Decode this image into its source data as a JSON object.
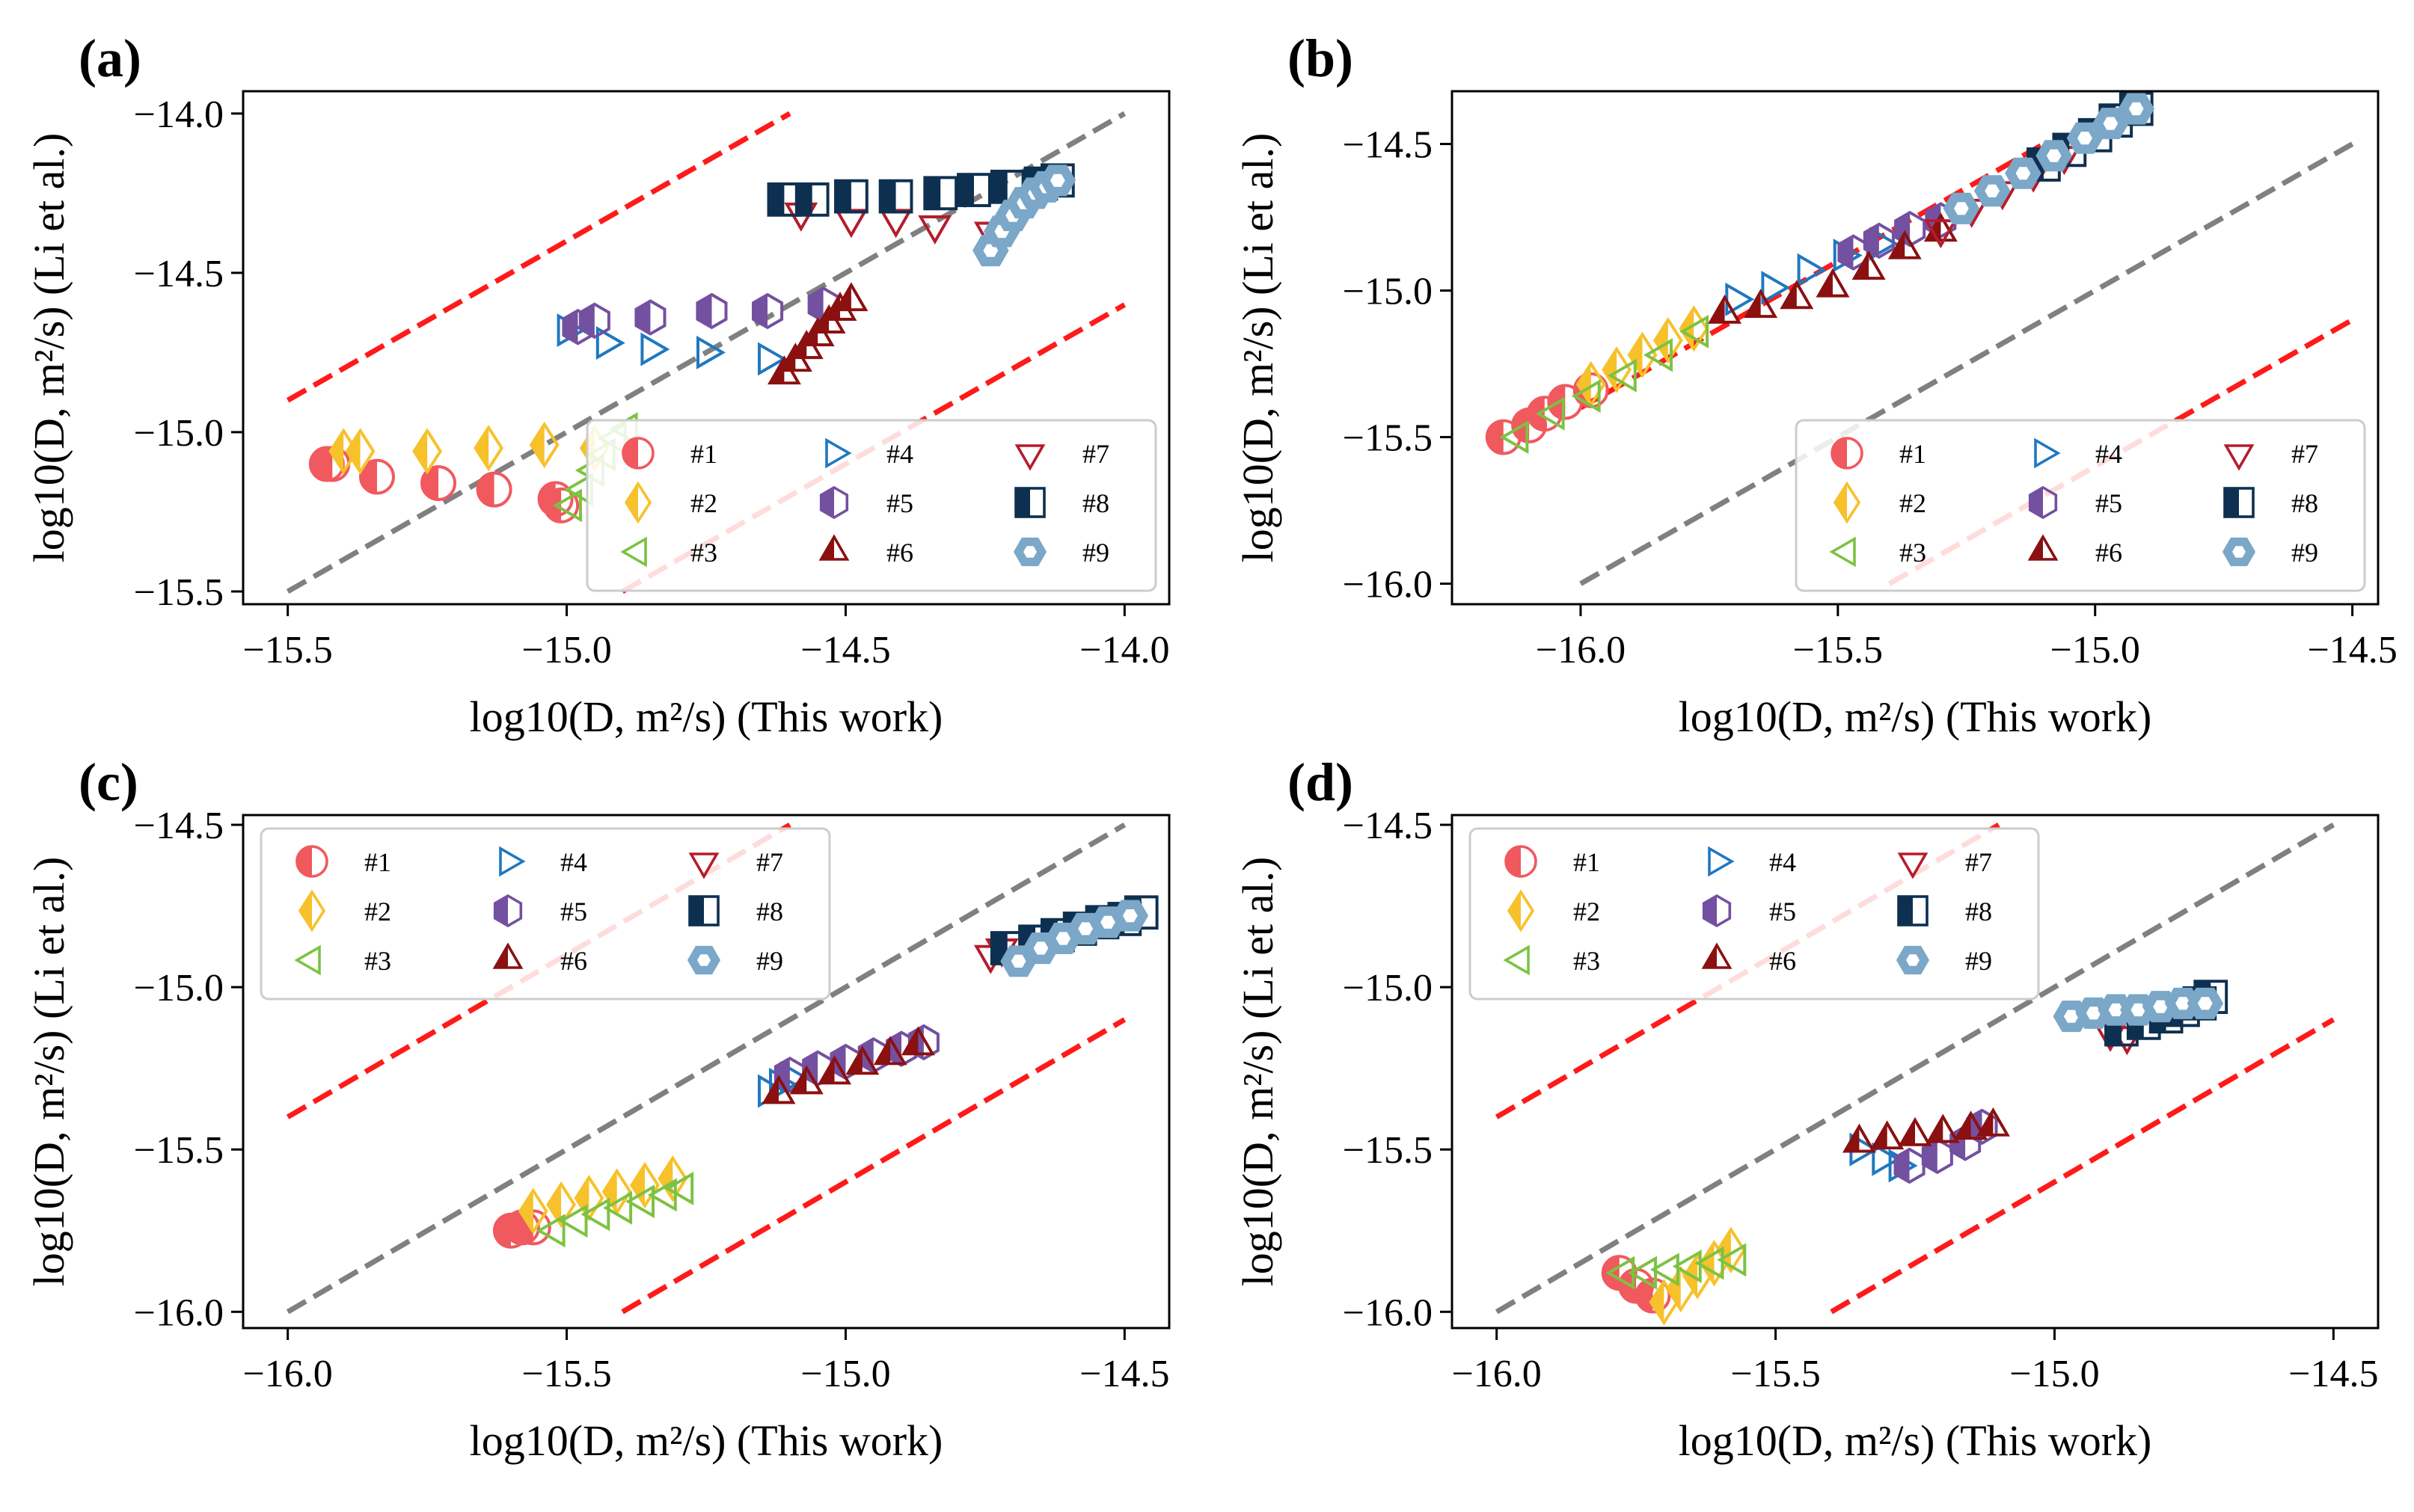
{
  "figure": {
    "x_axis_label": "log10(D, m²/s) (This work)",
    "y_axis_label": "log10(D, m²/s) (Li et al.)"
  },
  "series_styles": [
    {
      "name": "#1",
      "marker": "circle-half",
      "color": "#f0595e"
    },
    {
      "name": "#2",
      "marker": "diamond-half",
      "color": "#f7c12b"
    },
    {
      "name": "#3",
      "marker": "triangle-left",
      "color": "#7dc242"
    },
    {
      "name": "#4",
      "marker": "triangle-right",
      "color": "#1f78c0"
    },
    {
      "name": "#5",
      "marker": "hexagon-half",
      "color": "#7350a0"
    },
    {
      "name": "#6",
      "marker": "triangle-up-half",
      "color": "#8b1010"
    },
    {
      "name": "#7",
      "marker": "triangle-down",
      "color": "#b51c2c"
    },
    {
      "name": "#8",
      "marker": "square-half",
      "color": "#0e3050"
    },
    {
      "name": "#9",
      "marker": "hexagon-side",
      "color": "#7ba7c8"
    }
  ],
  "chart_data": [
    {
      "panel": "(a)",
      "type": "scatter",
      "xlabel": "log10(D, m²/s) (This work)",
      "ylabel": "log10(D, m²/s) (Li et al.)",
      "xlim": [
        -15.58,
        -13.92
      ],
      "ylim": [
        -15.54,
        -13.93
      ],
      "xticks": [
        -15.5,
        -15.0,
        -14.5,
        -14.0
      ],
      "xtick_labels": [
        "−15.5",
        "−15.0",
        "−14.5",
        "−14.0"
      ],
      "yticks": [
        -15.5,
        -15.0,
        -14.5,
        -14.0
      ],
      "ytick_labels": [
        "−15.5",
        "−15.0",
        "−14.5",
        "−14.0"
      ],
      "legend_position": "lower-right",
      "reference_lines": [
        {
          "name": "parity",
          "color": "#808080",
          "x": [
            -15.5,
            -14.0
          ],
          "y": [
            -15.5,
            -14.0
          ]
        },
        {
          "name": "upper-bound",
          "color": "#ff1a1a",
          "x": [
            -15.5,
            -14.6
          ],
          "y": [
            -14.9,
            -14.0
          ]
        },
        {
          "name": "lower-bound",
          "color": "#ff1a1a",
          "x": [
            -14.9,
            -14.0
          ],
          "y": [
            -15.5,
            -14.6
          ]
        }
      ],
      "series": [
        {
          "name": "#1",
          "x": [
            -15.43,
            -15.42,
            -15.34,
            -15.23,
            -15.13,
            -15.02,
            -15.01
          ],
          "y": [
            -15.1,
            -15.1,
            -15.14,
            -15.16,
            -15.18,
            -15.21,
            -15.23
          ]
        },
        {
          "name": "#2",
          "x": [
            -15.4,
            -15.37,
            -15.25,
            -15.14,
            -15.04,
            -14.95
          ],
          "y": [
            -15.06,
            -15.06,
            -15.06,
            -15.05,
            -15.04,
            -15.05
          ]
        },
        {
          "name": "#3",
          "x": [
            -14.99,
            -14.97,
            -14.95,
            -14.93,
            -14.91,
            -14.89
          ],
          "y": [
            -15.23,
            -15.18,
            -15.12,
            -15.07,
            -15.02,
            -14.99
          ]
        },
        {
          "name": "#4",
          "x": [
            -15.0,
            -14.93,
            -14.85,
            -14.75,
            -14.64
          ],
          "y": [
            -14.68,
            -14.72,
            -14.74,
            -14.75,
            -14.77
          ]
        },
        {
          "name": "#5",
          "x": [
            -14.98,
            -14.95,
            -14.85,
            -14.74,
            -14.64,
            -14.54
          ],
          "y": [
            -14.67,
            -14.65,
            -14.64,
            -14.62,
            -14.62,
            -14.6
          ]
        },
        {
          "name": "#6",
          "x": [
            -14.61,
            -14.59,
            -14.57,
            -14.55,
            -14.53,
            -14.51,
            -14.49
          ],
          "y": [
            -14.82,
            -14.78,
            -14.74,
            -14.7,
            -14.66,
            -14.62,
            -14.59
          ]
        },
        {
          "name": "#7",
          "x": [
            -14.58,
            -14.49,
            -14.41,
            -14.34,
            -14.24
          ],
          "y": [
            -14.31,
            -14.33,
            -14.33,
            -14.35,
            -14.37
          ]
        },
        {
          "name": "#8",
          "x": [
            -14.61,
            -14.56,
            -14.49,
            -14.41,
            -14.33,
            -14.27,
            -14.21,
            -14.15,
            -14.12
          ],
          "y": [
            -14.27,
            -14.27,
            -14.26,
            -14.26,
            -14.25,
            -14.24,
            -14.23,
            -14.22,
            -14.21
          ]
        },
        {
          "name": "#9",
          "x": [
            -14.24,
            -14.22,
            -14.2,
            -14.18,
            -14.16,
            -14.14,
            -14.12
          ],
          "y": [
            -14.43,
            -14.37,
            -14.32,
            -14.28,
            -14.25,
            -14.23,
            -14.21
          ]
        }
      ]
    },
    {
      "panel": "(b)",
      "type": "scatter",
      "xlabel": "log10(D, m²/s) (This work)",
      "ylabel": "log10(D, m²/s) (Li et al.)",
      "xlim": [
        -16.25,
        -14.45
      ],
      "ylim": [
        -16.07,
        -14.32
      ],
      "xticks": [
        -16.0,
        -15.5,
        -15.0,
        -14.5
      ],
      "xtick_labels": [
        "−16.0",
        "−15.5",
        "−15.0",
        "−14.5"
      ],
      "yticks": [
        -16.0,
        -15.5,
        -15.0,
        -14.5
      ],
      "ytick_labels": [
        "−16.0",
        "−15.5",
        "−15.0",
        "−14.5"
      ],
      "legend_position": "lower-right",
      "reference_lines": [
        {
          "name": "parity",
          "color": "#808080",
          "x": [
            -16.0,
            -14.5
          ],
          "y": [
            -16.0,
            -14.5
          ]
        },
        {
          "name": "upper-bound",
          "color": "#ff1a1a",
          "x": [
            -16.0,
            -15.1
          ],
          "y": [
            -15.4,
            -14.5
          ]
        },
        {
          "name": "lower-bound",
          "color": "#ff1a1a",
          "x": [
            -15.4,
            -14.5
          ],
          "y": [
            -16.0,
            -15.1
          ]
        }
      ],
      "series": [
        {
          "name": "#1",
          "x": [
            -16.15,
            -16.1,
            -16.07,
            -16.03,
            -15.98
          ],
          "y": [
            -15.5,
            -15.46,
            -15.42,
            -15.38,
            -15.34
          ]
        },
        {
          "name": "#2",
          "x": [
            -15.98,
            -15.93,
            -15.88,
            -15.83,
            -15.78
          ],
          "y": [
            -15.32,
            -15.27,
            -15.22,
            -15.17,
            -15.13
          ]
        },
        {
          "name": "#3",
          "x": [
            -16.12,
            -16.05,
            -15.98,
            -15.91,
            -15.84,
            -15.77
          ],
          "y": [
            -15.5,
            -15.42,
            -15.36,
            -15.29,
            -15.22,
            -15.14
          ]
        },
        {
          "name": "#4",
          "x": [
            -15.7,
            -15.63,
            -15.56,
            -15.49,
            -15.42
          ],
          "y": [
            -15.03,
            -14.99,
            -14.93,
            -14.88,
            -14.84
          ]
        },
        {
          "name": "#5",
          "x": [
            -15.47,
            -15.42,
            -15.36,
            -15.3
          ],
          "y": [
            -14.87,
            -14.83,
            -14.79,
            -14.76
          ]
        },
        {
          "name": "#6",
          "x": [
            -15.72,
            -15.65,
            -15.58,
            -15.51,
            -15.44,
            -15.37,
            -15.3
          ],
          "y": [
            -15.08,
            -15.06,
            -15.03,
            -14.99,
            -14.93,
            -14.86,
            -14.8
          ]
        },
        {
          "name": "#7",
          "x": [
            -15.3,
            -15.24,
            -15.18,
            -15.12,
            -15.06
          ],
          "y": [
            -14.79,
            -14.72,
            -14.66,
            -14.6,
            -14.54
          ]
        },
        {
          "name": "#8",
          "x": [
            -15.1,
            -15.05,
            -15.0,
            -14.96,
            -14.92
          ],
          "y": [
            -14.57,
            -14.52,
            -14.47,
            -14.42,
            -14.38
          ]
        },
        {
          "name": "#9",
          "x": [
            -15.26,
            -15.2,
            -15.14,
            -15.08,
            -15.02,
            -14.97,
            -14.92
          ],
          "y": [
            -14.72,
            -14.66,
            -14.6,
            -14.54,
            -14.48,
            -14.43,
            -14.38
          ]
        }
      ]
    },
    {
      "panel": "(c)",
      "type": "scatter",
      "xlabel": "log10(D, m²/s) (This work)",
      "ylabel": "log10(D, m²/s) (Li et al.)",
      "xlim": [
        -16.08,
        -14.42
      ],
      "ylim": [
        -16.05,
        -14.47
      ],
      "xticks": [
        -16.0,
        -15.5,
        -15.0,
        -14.5
      ],
      "xtick_labels": [
        "−16.0",
        "−15.5",
        "−15.0",
        "−14.5"
      ],
      "yticks": [
        -16.0,
        -15.5,
        -15.0,
        -14.5
      ],
      "ytick_labels": [
        "−16.0",
        "−15.5",
        "−15.0",
        "−14.5"
      ],
      "legend_position": "upper-left",
      "reference_lines": [
        {
          "name": "parity",
          "color": "#808080",
          "x": [
            -16.0,
            -14.5
          ],
          "y": [
            -16.0,
            -14.5
          ]
        },
        {
          "name": "upper-bound",
          "color": "#ff1a1a",
          "x": [
            -16.0,
            -15.1
          ],
          "y": [
            -15.4,
            -14.5
          ]
        },
        {
          "name": "lower-bound",
          "color": "#ff1a1a",
          "x": [
            -15.4,
            -14.5
          ],
          "y": [
            -16.0,
            -15.1
          ]
        }
      ],
      "series": [
        {
          "name": "#1",
          "x": [
            -15.6,
            -15.58,
            -15.56
          ],
          "y": [
            -15.75,
            -15.74,
            -15.74
          ]
        },
        {
          "name": "#2",
          "x": [
            -15.56,
            -15.51,
            -15.46,
            -15.41,
            -15.36,
            -15.31
          ],
          "y": [
            -15.69,
            -15.67,
            -15.65,
            -15.63,
            -15.61,
            -15.59
          ]
        },
        {
          "name": "#3",
          "x": [
            -15.52,
            -15.48,
            -15.44,
            -15.4,
            -15.36,
            -15.32,
            -15.29
          ],
          "y": [
            -15.75,
            -15.72,
            -15.7,
            -15.68,
            -15.66,
            -15.64,
            -15.62
          ]
        },
        {
          "name": "#4",
          "x": [
            -15.14,
            -15.12,
            -15.1
          ],
          "y": [
            -15.32,
            -15.3,
            -15.28
          ]
        },
        {
          "name": "#5",
          "x": [
            -15.1,
            -15.05,
            -15.0,
            -14.95,
            -14.9,
            -14.86
          ],
          "y": [
            -15.27,
            -15.25,
            -15.23,
            -15.21,
            -15.19,
            -15.17
          ]
        },
        {
          "name": "#6",
          "x": [
            -15.12,
            -15.07,
            -15.02,
            -14.97,
            -14.92,
            -14.87
          ],
          "y": [
            -15.33,
            -15.3,
            -15.27,
            -15.24,
            -15.21,
            -15.18
          ]
        },
        {
          "name": "#7",
          "x": [
            -14.74,
            -14.72
          ],
          "y": [
            -14.9,
            -14.88
          ]
        },
        {
          "name": "#8",
          "x": [
            -14.71,
            -14.66,
            -14.62,
            -14.58,
            -14.54,
            -14.5,
            -14.47
          ],
          "y": [
            -14.88,
            -14.86,
            -14.84,
            -14.82,
            -14.8,
            -14.79,
            -14.77
          ]
        },
        {
          "name": "#9",
          "x": [
            -14.69,
            -14.65,
            -14.61,
            -14.57,
            -14.53,
            -14.49
          ],
          "y": [
            -14.92,
            -14.88,
            -14.85,
            -14.82,
            -14.8,
            -14.78
          ]
        }
      ]
    },
    {
      "panel": "(d)",
      "type": "scatter",
      "xlabel": "log10(D, m²/s) (This work)",
      "ylabel": "log10(D, m²/s) (Li et al.)",
      "xlim": [
        -16.08,
        -14.42
      ],
      "ylim": [
        -16.05,
        -14.47
      ],
      "xticks": [
        -16.0,
        -15.5,
        -15.0,
        -14.5
      ],
      "xtick_labels": [
        "−16.0",
        "−15.5",
        "−15.0",
        "−14.5"
      ],
      "yticks": [
        -16.0,
        -15.5,
        -15.0,
        -14.5
      ],
      "ytick_labels": [
        "−16.0",
        "−15.5",
        "−15.0",
        "−14.5"
      ],
      "legend_position": "upper-left",
      "reference_lines": [
        {
          "name": "parity",
          "color": "#808080",
          "x": [
            -16.0,
            -14.5
          ],
          "y": [
            -16.0,
            -14.5
          ]
        },
        {
          "name": "upper-bound",
          "color": "#ff1a1a",
          "x": [
            -16.0,
            -15.1
          ],
          "y": [
            -15.4,
            -14.5
          ]
        },
        {
          "name": "lower-bound",
          "color": "#ff1a1a",
          "x": [
            -15.4,
            -14.5
          ],
          "y": [
            -16.0,
            -15.1
          ]
        }
      ],
      "series": [
        {
          "name": "#1",
          "x": [
            -15.78,
            -15.75,
            -15.72
          ],
          "y": [
            -15.88,
            -15.92,
            -15.95
          ]
        },
        {
          "name": "#2",
          "x": [
            -15.7,
            -15.67,
            -15.64,
            -15.61,
            -15.58
          ],
          "y": [
            -15.97,
            -15.93,
            -15.89,
            -15.85,
            -15.81
          ]
        },
        {
          "name": "#3",
          "x": [
            -15.77,
            -15.73,
            -15.69,
            -15.65,
            -15.61,
            -15.57
          ],
          "y": [
            -15.88,
            -15.88,
            -15.87,
            -15.86,
            -15.85,
            -15.84
          ]
        },
        {
          "name": "#4",
          "x": [
            -15.35,
            -15.31,
            -15.28
          ],
          "y": [
            -15.5,
            -15.53,
            -15.55
          ]
        },
        {
          "name": "#5",
          "x": [
            -15.26,
            -15.21,
            -15.16,
            -15.13
          ],
          "y": [
            -15.55,
            -15.52,
            -15.48,
            -15.43
          ]
        },
        {
          "name": "#6",
          "x": [
            -15.35,
            -15.3,
            -15.25,
            -15.2,
            -15.15,
            -15.11
          ],
          "y": [
            -15.48,
            -15.47,
            -15.46,
            -15.45,
            -15.44,
            -15.43
          ]
        },
        {
          "name": "#7",
          "x": [
            -14.9,
            -14.87
          ],
          "y": [
            -15.14,
            -15.15
          ]
        },
        {
          "name": "#8",
          "x": [
            -14.88,
            -14.84,
            -14.8,
            -14.77,
            -14.74,
            -14.72
          ],
          "y": [
            -15.13,
            -15.11,
            -15.09,
            -15.07,
            -15.05,
            -15.03
          ]
        },
        {
          "name": "#9",
          "x": [
            -14.97,
            -14.93,
            -14.89,
            -14.85,
            -14.81,
            -14.77,
            -14.73
          ],
          "y": [
            -15.09,
            -15.08,
            -15.07,
            -15.07,
            -15.06,
            -15.05,
            -15.05
          ]
        }
      ]
    }
  ]
}
